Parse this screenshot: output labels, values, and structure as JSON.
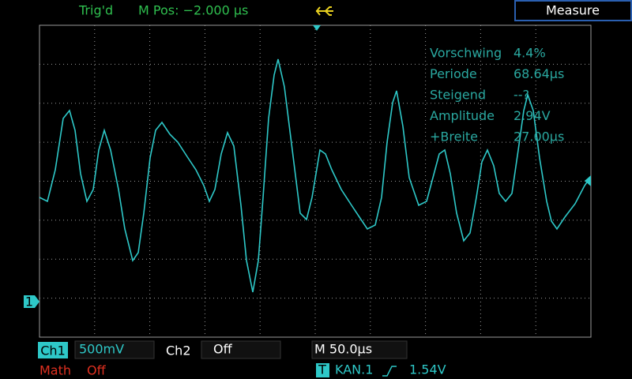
{
  "header": {
    "status": "Trig'd",
    "position": "M Pos: −2.000 µs",
    "menu": "Measure"
  },
  "measurements": [
    {
      "label": "Vorschwing",
      "value": "4.4%"
    },
    {
      "label": "Periode",
      "value": "68.64µs"
    },
    {
      "label": "Steigend",
      "value": "--?"
    },
    {
      "label": "Amplitude",
      "value": "2.94V"
    },
    {
      "label": "+Breite",
      "value": "27.00µs"
    }
  ],
  "markers": {
    "channel": "1",
    "trigger": "T"
  },
  "footer": {
    "ch1": "Ch1",
    "ch1_scale": "500mV",
    "ch2": "Ch2",
    "ch2_scale": "Off",
    "timebase": "M 50.0µs",
    "math": "Math",
    "math_state": "Off",
    "trigger_source": "KAN.1",
    "trigger_level": "1.54V"
  }
}
